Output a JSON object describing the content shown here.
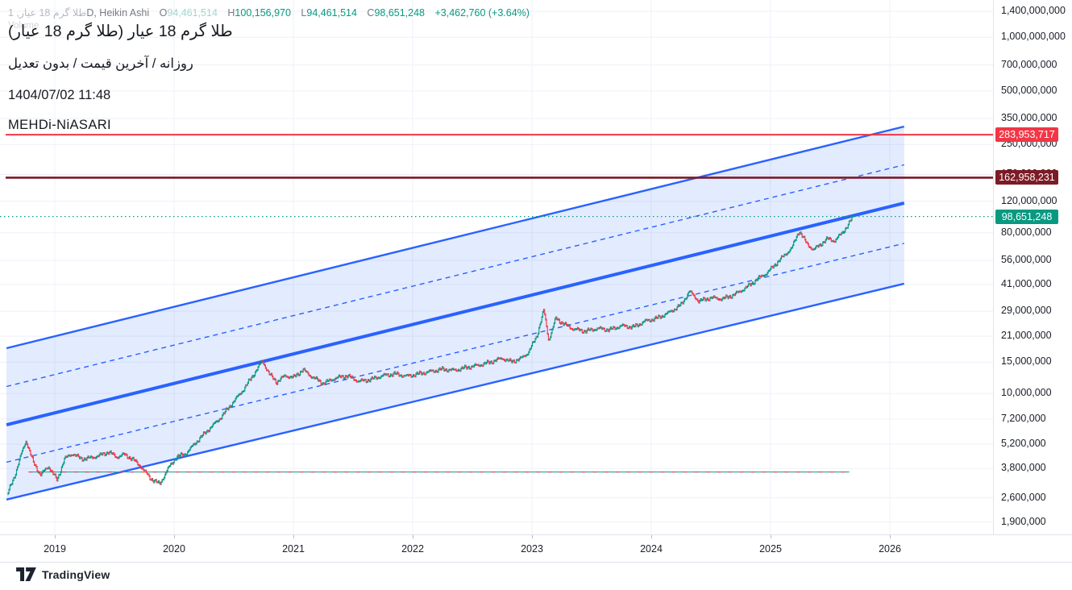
{
  "legend": {
    "symbol_interval": "طلا گرم 18 عیار, 1",
    "type_suffix": "D, Heikin Ashi",
    "ohlc": {
      "o_label": "O",
      "o": "94,461,514",
      "h_label": "H",
      "h": "100,156,970",
      "l_label": "L",
      "l": "94,461,514",
      "c_label": "C",
      "c": "98,651,248",
      "change": "+3,462,760 (+3.64%)"
    }
  },
  "indicator_ghost_label": "Volume",
  "watermark": {
    "line1": "طلا گرم 18 عیار (طلا گرم 18 عیار)",
    "line2": "روزانه / آخرین قیمت / بدون تعدیل",
    "line3": "1404/07/02 11:48",
    "line4": "MEHDi-NiASARI"
  },
  "footer": {
    "logo_label": "TradingView"
  },
  "colors": {
    "up": "#089981",
    "down": "#F23645",
    "channel": "#2962FF",
    "channel_fill": "rgba(41,98,255,0.13)",
    "hline_red": "#F23645",
    "hline_maroon": "#7C1B26",
    "grid": "#eef1f8",
    "axis_text": "#1a1e29"
  },
  "chart_data": {
    "type": "candlestick",
    "subtype": "heikin-ashi",
    "title": "طلا گرم 18 عیار (طلا گرم 18 عیار)",
    "x_axis": {
      "label": "",
      "ticks_years": [
        2019,
        2020,
        2021,
        2022,
        2023,
        2024,
        2025,
        2026
      ]
    },
    "y_axis": {
      "scale": "log",
      "ticks": [
        1400000000,
        1000000000,
        700000000,
        500000000,
        350000000,
        250000000,
        170000000,
        120000000,
        80000000,
        56000000,
        41000000,
        29000000,
        21000000,
        15000000,
        10000000,
        7200000,
        5200000,
        3800000,
        2600000,
        1900000
      ]
    },
    "series": {
      "name": "طلا گرم 18 عیار",
      "points_year_price": [
        [
          2018.6,
          2700000
        ],
        [
          2018.66,
          3400000
        ],
        [
          2018.72,
          4600000
        ],
        [
          2018.76,
          5450000
        ],
        [
          2018.82,
          4100000
        ],
        [
          2018.88,
          3500000
        ],
        [
          2018.95,
          3900000
        ],
        [
          2019.02,
          3250000
        ],
        [
          2019.08,
          4300000
        ],
        [
          2019.15,
          4600000
        ],
        [
          2019.22,
          4300000
        ],
        [
          2019.3,
          4350000
        ],
        [
          2019.38,
          4500000
        ],
        [
          2019.45,
          4700000
        ],
        [
          2019.52,
          4400000
        ],
        [
          2019.58,
          4550000
        ],
        [
          2019.65,
          4300000
        ],
        [
          2019.72,
          3900000
        ],
        [
          2019.8,
          3350000
        ],
        [
          2019.88,
          3100000
        ],
        [
          2019.95,
          3800000
        ],
        [
          2020.02,
          4400000
        ],
        [
          2020.1,
          4600000
        ],
        [
          2020.18,
          5300000
        ],
        [
          2020.28,
          6200000
        ],
        [
          2020.38,
          7200000
        ],
        [
          2020.48,
          8700000
        ],
        [
          2020.58,
          10500000
        ],
        [
          2020.68,
          13200000
        ],
        [
          2020.74,
          15300000
        ],
        [
          2020.8,
          12800000
        ],
        [
          2020.86,
          11600000
        ],
        [
          2020.93,
          12600000
        ],
        [
          2021.0,
          12300000
        ],
        [
          2021.08,
          13600000
        ],
        [
          2021.15,
          12500000
        ],
        [
          2021.25,
          11400000
        ],
        [
          2021.35,
          12200000
        ],
        [
          2021.45,
          12600000
        ],
        [
          2021.55,
          11700000
        ],
        [
          2021.65,
          12000000
        ],
        [
          2021.75,
          12600000
        ],
        [
          2021.85,
          12900000
        ],
        [
          2021.95,
          12500000
        ],
        [
          2022.05,
          12900000
        ],
        [
          2022.15,
          13300000
        ],
        [
          2022.25,
          13700000
        ],
        [
          2022.35,
          13500000
        ],
        [
          2022.45,
          14000000
        ],
        [
          2022.55,
          14400000
        ],
        [
          2022.65,
          15000000
        ],
        [
          2022.75,
          15800000
        ],
        [
          2022.82,
          15100000
        ],
        [
          2022.9,
          15600000
        ],
        [
          2022.97,
          17000000
        ],
        [
          2023.04,
          21000000
        ],
        [
          2023.1,
          29500000
        ],
        [
          2023.14,
          19800000
        ],
        [
          2023.2,
          26500000
        ],
        [
          2023.27,
          24500000
        ],
        [
          2023.35,
          23000000
        ],
        [
          2023.45,
          22400000
        ],
        [
          2023.55,
          23200000
        ],
        [
          2023.65,
          22800000
        ],
        [
          2023.75,
          24000000
        ],
        [
          2023.85,
          23600000
        ],
        [
          2023.95,
          25500000
        ],
        [
          2024.05,
          26500000
        ],
        [
          2024.15,
          28500000
        ],
        [
          2024.25,
          31500000
        ],
        [
          2024.32,
          37500000
        ],
        [
          2024.4,
          33000000
        ],
        [
          2024.5,
          34500000
        ],
        [
          2024.6,
          34000000
        ],
        [
          2024.7,
          36000000
        ],
        [
          2024.8,
          39500000
        ],
        [
          2024.9,
          44500000
        ],
        [
          2024.97,
          47500000
        ],
        [
          2025.05,
          54000000
        ],
        [
          2025.12,
          60000000
        ],
        [
          2025.18,
          66000000
        ],
        [
          2025.24,
          82000000
        ],
        [
          2025.3,
          70000000
        ],
        [
          2025.36,
          64000000
        ],
        [
          2025.42,
          69000000
        ],
        [
          2025.48,
          74000000
        ],
        [
          2025.54,
          72000000
        ],
        [
          2025.6,
          80000000
        ],
        [
          2025.65,
          88000000
        ],
        [
          2025.69,
          98651248
        ]
      ]
    },
    "annotations": {
      "regression_channel": {
        "t_start": 2018.595,
        "t_end": 2026.12,
        "upper_price": [
          17980000,
          315500000
        ],
        "middle_price": [
          6680000,
          117300000
        ],
        "lower_price": [
          2540000,
          41400000
        ],
        "has_quartile_dashed_lines": true
      },
      "horizontal_lines": [
        {
          "price": 283953717,
          "label": "283,953,717",
          "color": "#F23645",
          "width": 2
        },
        {
          "price": 162958231,
          "label": "162,958,231",
          "color": "#7C1B26",
          "width": 2.6
        }
      ],
      "current_price_line": {
        "price": 98651248,
        "label": "98,651,248",
        "style": "dotted"
      },
      "flat_baseline": {
        "price": 3630000,
        "t_start": 2018.78,
        "t_end": 2025.66
      }
    },
    "last_close": 98651248,
    "change_abs": 3462760,
    "change_pct": 3.64,
    "legend_position": "top-left",
    "grid": true
  }
}
